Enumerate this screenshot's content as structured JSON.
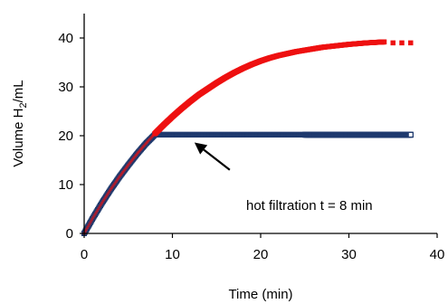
{
  "chart_data": {
    "type": "scatter",
    "xlabel": "Time (min)",
    "ylabel_main": "Volume H",
    "ylabel_sub": "2",
    "ylabel_tail": "/mL",
    "xlim": [
      0,
      40
    ],
    "ylim": [
      0,
      45
    ],
    "xticks": [
      0,
      10,
      20,
      30,
      40
    ],
    "yticks": [
      0,
      10,
      20,
      30,
      40
    ],
    "grid": false,
    "colors": {
      "red_series": "#ee1111",
      "blue_series": "#1f3a6e",
      "arrow": "#000000"
    },
    "series": [
      {
        "points": [
          [
            0,
            0
          ],
          [
            1,
            3.2
          ],
          [
            2,
            6.2
          ],
          [
            3,
            9.0
          ],
          [
            4,
            11.6
          ],
          [
            5,
            14.0
          ],
          [
            6,
            16.3
          ],
          [
            7,
            18.4
          ],
          [
            8,
            20.4
          ],
          [
            9,
            22.2
          ],
          [
            10,
            23.9
          ],
          [
            11,
            25.5
          ],
          [
            12,
            27.0
          ],
          [
            13,
            28.4
          ],
          [
            14,
            29.6
          ],
          [
            15,
            30.8
          ],
          [
            16,
            31.9
          ],
          [
            17,
            32.9
          ],
          [
            18,
            33.8
          ],
          [
            19,
            34.6
          ],
          [
            20,
            35.3
          ],
          [
            21,
            35.9
          ],
          [
            22,
            36.4
          ],
          [
            23,
            36.8
          ],
          [
            24,
            37.2
          ],
          [
            25,
            37.5
          ],
          [
            26,
            37.8
          ],
          [
            27,
            38.1
          ],
          [
            28,
            38.3
          ],
          [
            29,
            38.5
          ],
          [
            30,
            38.7
          ],
          [
            31,
            38.85
          ],
          [
            32,
            39.0
          ],
          [
            33,
            39.1
          ],
          [
            34,
            39.2
          ],
          [
            35,
            39.0
          ],
          [
            36,
            39.0
          ],
          [
            37,
            39.0
          ]
        ]
      },
      {
        "points": [
          [
            0,
            0
          ],
          [
            1,
            3.2
          ],
          [
            2,
            6.2
          ],
          [
            3,
            9.0
          ],
          [
            4,
            11.6
          ],
          [
            5,
            14.0
          ],
          [
            6,
            16.3
          ],
          [
            7,
            18.4
          ],
          [
            8,
            20.2
          ],
          [
            10,
            20.2
          ],
          [
            12,
            20.2
          ],
          [
            14,
            20.2
          ],
          [
            16,
            20.2
          ],
          [
            18,
            20.2
          ],
          [
            20,
            20.2
          ],
          [
            22,
            20.2
          ],
          [
            24,
            20.2
          ],
          [
            26,
            20.2
          ],
          [
            28,
            20.2
          ],
          [
            30,
            20.2
          ],
          [
            32,
            20.2
          ],
          [
            34,
            20.2
          ],
          [
            36,
            20.2
          ],
          [
            37,
            20.2
          ]
        ]
      }
    ],
    "annotation": {
      "text": "hot filtration t = 8 min",
      "arrow_from": [
        16.5,
        13.0
      ],
      "arrow_to": [
        12.5,
        18.6
      ]
    }
  }
}
